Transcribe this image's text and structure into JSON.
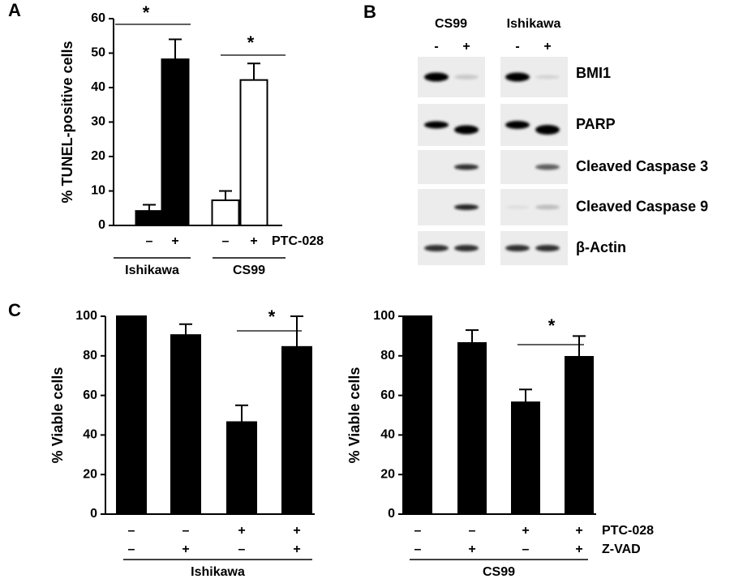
{
  "panel_labels": [
    "A",
    "B",
    "C"
  ],
  "chart_data": [
    {
      "type": "bar",
      "ylabel": "% TUNEL-positive cells",
      "ylim": [
        0,
        60
      ],
      "yticks": [
        0,
        10,
        20,
        30,
        40,
        50,
        60
      ],
      "categories": [
        "–",
        "+",
        "–",
        "+"
      ],
      "values": [
        4.2,
        48.2,
        7.3,
        42.2
      ],
      "errors": [
        1.8,
        5.8,
        2.7,
        4.8
      ],
      "colors": [
        "#000000",
        "#000000",
        "#ffffff",
        "#ffffff"
      ],
      "treatment": "PTC-028",
      "groups": [
        "Ishikawa",
        "CS99"
      ],
      "annotations": [
        "*",
        "*"
      ]
    },
    {
      "type": "bar",
      "ylabel": "% Viable cells",
      "ylim": [
        0,
        100
      ],
      "yticks": [
        0,
        20,
        40,
        60,
        80,
        100
      ],
      "values": [
        100,
        90.5,
        46.5,
        84.5
      ],
      "errors": [
        0,
        5.5,
        8.5,
        15.5
      ],
      "color": "#000000",
      "rows": [
        [
          "–",
          "–",
          "+",
          "+"
        ],
        [
          "–",
          "+",
          "–",
          "+"
        ]
      ],
      "groups": [
        "Ishikawa"
      ],
      "annotations": [
        "*"
      ]
    },
    {
      "type": "bar",
      "ylabel": "% Viable cells",
      "ylim": [
        0,
        100
      ],
      "yticks": [
        0,
        20,
        40,
        60,
        80,
        100
      ],
      "values": [
        100,
        86.5,
        56.5,
        79.5
      ],
      "errors": [
        0,
        6.5,
        6.5,
        10.5
      ],
      "color": "#000000",
      "rows": [
        [
          "–",
          "–",
          "+",
          "+"
        ],
        [
          "–",
          "+",
          "–",
          "+"
        ]
      ],
      "row_names": [
        "PTC-028",
        "Z-VAD"
      ],
      "groups": [
        "CS99"
      ],
      "annotations": [
        "*"
      ]
    }
  ],
  "blot": {
    "cell_lines": [
      {
        "name": "CS99",
        "lanes": [
          "-",
          "+"
        ]
      },
      {
        "name": "Ishikawa",
        "lanes": [
          "-",
          "+"
        ]
      }
    ],
    "proteins": [
      "BMI1",
      "PARP",
      "Cleaved Caspase 3",
      "Cleaved Caspase 9",
      "β-Actin"
    ]
  }
}
